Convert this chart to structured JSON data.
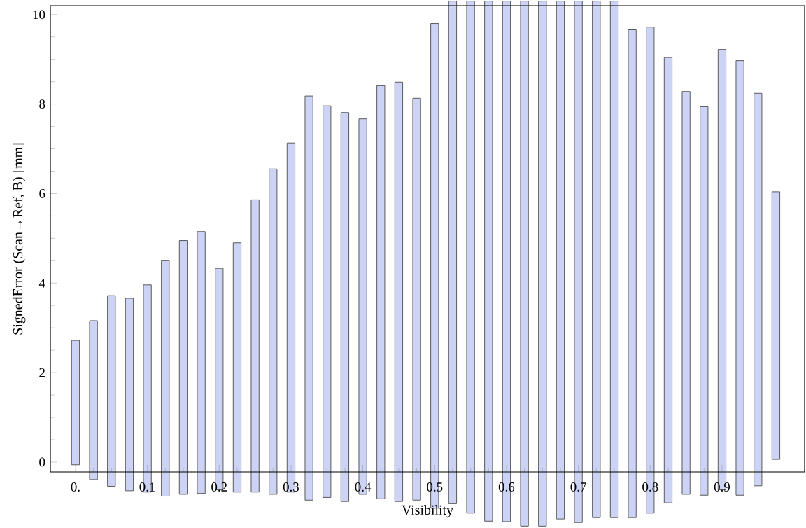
{
  "chart_data": {
    "type": "bar",
    "xlabel": "Visibility",
    "ylabel": "SignedError (Scan→Ref, B) [mm]",
    "x": [
      0,
      0.025,
      0.05,
      0.075,
      0.1,
      0.125,
      0.15,
      0.175,
      0.2,
      0.225,
      0.25,
      0.275,
      0.3,
      0.325,
      0.35,
      0.375,
      0.4,
      0.425,
      0.45,
      0.475,
      0.5,
      0.525,
      0.55,
      0.575,
      0.6,
      0.625,
      0.65,
      0.675,
      0.7,
      0.725,
      0.75,
      0.775,
      0.8,
      0.825,
      0.85,
      0.875,
      0.9,
      0.925,
      0.95,
      0.975
    ],
    "base": [
      -0.06,
      -0.39,
      -0.54,
      -0.64,
      -0.67,
      -0.76,
      -0.72,
      -0.7,
      -0.62,
      -0.67,
      -0.67,
      -0.72,
      -0.67,
      -0.85,
      -0.79,
      -0.88,
      -0.72,
      -0.82,
      -0.88,
      -0.85,
      -1.03,
      -0.93,
      -1.14,
      -1.32,
      -1.33,
      -1.43,
      -1.43,
      -1.27,
      -1.35,
      -1.24,
      -1.24,
      -1.24,
      -1.14,
      -0.91,
      -0.72,
      -0.74,
      -0.62,
      -0.74,
      -0.53,
      0.06
    ],
    "values": [
      2.78,
      3.55,
      4.26,
      4.3,
      4.63,
      5.26,
      5.67,
      5.85,
      4.95,
      5.57,
      6.53,
      7.27,
      7.8,
      9.03,
      8.75,
      8.69,
      8.39,
      9.23,
      9.37,
      8.98,
      10.83,
      11.23,
      11.44,
      11.62,
      11.63,
      11.73,
      11.73,
      11.57,
      11.65,
      11.54,
      11.54,
      10.9,
      10.86,
      9.95,
      9.0,
      8.68,
      9.84,
      9.71,
      8.77,
      5.98
    ],
    "color": "#ccd3f5",
    "xlim": [
      -0.035,
      1.015
    ],
    "ylim": [
      -0.22,
      10.2
    ],
    "xticks": [
      {
        "value": 0,
        "label": "0."
      },
      0.1,
      0.2,
      0.3,
      0.4,
      0.5,
      0.6,
      0.7,
      0.8,
      0.9
    ],
    "yticks": [
      0,
      2,
      4,
      6,
      8,
      10
    ]
  }
}
